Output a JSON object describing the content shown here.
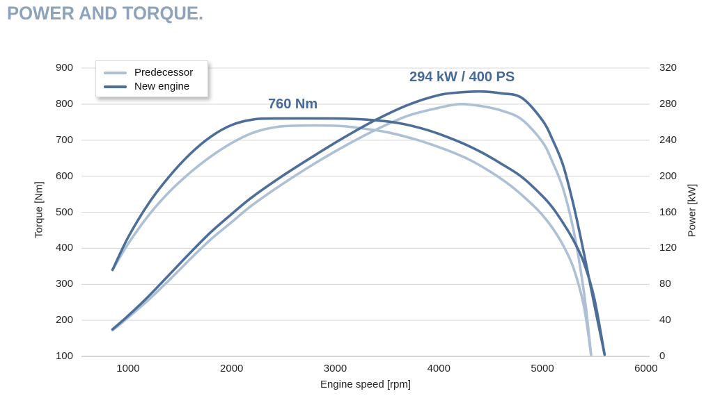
{
  "title": "POWER AND TORQUE.",
  "colors": {
    "predecessor": "#adc0d5",
    "new_engine": "#4d6e98",
    "title": "#8da3bc",
    "annotation": "#46699a",
    "tick_text": "#262626",
    "gridline": "#d6d9dc",
    "baseline": "#c6c8ca",
    "background": "#ffffff"
  },
  "legend": {
    "items": [
      {
        "label": "Predecessor",
        "color_key": "predecessor"
      },
      {
        "label": "New engine",
        "color_key": "new_engine"
      }
    ]
  },
  "annotations": {
    "torque_peak": "760 Nm",
    "power_peak": "294 kW / 400 PS"
  },
  "chart_data": {
    "type": "line",
    "title": "POWER AND TORQUE.",
    "xlabel": "Engine speed [rpm]",
    "ylabel_left": "Torque [Nm]",
    "ylabel_right": "Power [kW]",
    "x_ticks": [
      1000,
      2000,
      3000,
      4000,
      5000,
      6000
    ],
    "x_range": [
      550,
      6035
    ],
    "left_ticks": [
      100,
      200,
      300,
      400,
      500,
      600,
      700,
      800,
      900
    ],
    "left_range": [
      100,
      900
    ],
    "right_ticks": [
      0,
      40,
      80,
      120,
      160,
      200,
      240,
      280,
      320
    ],
    "right_range": [
      0,
      320
    ],
    "grid": "horizontal-only",
    "legend_position": "top-left-inside",
    "series": [
      {
        "key": "predecessor-torque",
        "name": "Predecessor - torque [Nm]",
        "axis": "left",
        "color_key": "predecessor",
        "points": [
          [
            850,
            340
          ],
          [
            1000,
            412
          ],
          [
            1200,
            492
          ],
          [
            1400,
            557
          ],
          [
            1600,
            610
          ],
          [
            1800,
            655
          ],
          [
            2000,
            692
          ],
          [
            2200,
            720
          ],
          [
            2400,
            735
          ],
          [
            2600,
            740
          ],
          [
            3000,
            740
          ],
          [
            3200,
            735
          ],
          [
            3500,
            722
          ],
          [
            3800,
            700
          ],
          [
            4100,
            670
          ],
          [
            4300,
            645
          ],
          [
            4500,
            612
          ],
          [
            4700,
            572
          ],
          [
            4900,
            522
          ],
          [
            5000,
            492
          ],
          [
            5100,
            455
          ],
          [
            5200,
            408
          ],
          [
            5300,
            345
          ],
          [
            5400,
            240
          ],
          [
            5470,
            105
          ]
        ]
      },
      {
        "key": "predecessor-power",
        "name": "Predecessor - power [kW]",
        "axis": "right",
        "color_key": "predecessor",
        "points": [
          [
            850,
            29
          ],
          [
            1000,
            43
          ],
          [
            1200,
            63
          ],
          [
            1400,
            85
          ],
          [
            1600,
            108
          ],
          [
            1800,
            130
          ],
          [
            2000,
            149
          ],
          [
            2200,
            168
          ],
          [
            2500,
            192
          ],
          [
            2800,
            214
          ],
          [
            3100,
            234
          ],
          [
            3400,
            252
          ],
          [
            3700,
            267
          ],
          [
            4000,
            276
          ],
          [
            4200,
            280
          ],
          [
            4400,
            278
          ],
          [
            4600,
            273
          ],
          [
            4800,
            263
          ],
          [
            5000,
            238
          ],
          [
            5100,
            215
          ],
          [
            5200,
            186
          ],
          [
            5300,
            140
          ],
          [
            5400,
            72
          ],
          [
            5470,
            2
          ]
        ]
      },
      {
        "key": "new-engine-torque",
        "name": "New engine - torque [Nm]",
        "axis": "left",
        "color_key": "new_engine",
        "points": [
          [
            850,
            340
          ],
          [
            1000,
            430
          ],
          [
            1200,
            525
          ],
          [
            1400,
            600
          ],
          [
            1600,
            662
          ],
          [
            1800,
            710
          ],
          [
            2000,
            742
          ],
          [
            2200,
            757
          ],
          [
            2400,
            760
          ],
          [
            3000,
            760
          ],
          [
            3300,
            757
          ],
          [
            3600,
            748
          ],
          [
            3900,
            727
          ],
          [
            4200,
            695
          ],
          [
            4400,
            668
          ],
          [
            4600,
            635
          ],
          [
            4800,
            598
          ],
          [
            5000,
            545
          ],
          [
            5100,
            512
          ],
          [
            5200,
            470
          ],
          [
            5300,
            422
          ],
          [
            5400,
            360
          ],
          [
            5500,
            262
          ],
          [
            5600,
            105
          ]
        ]
      },
      {
        "key": "new-engine-power",
        "name": "New engine - power [kW]",
        "axis": "right",
        "color_key": "new_engine",
        "points": [
          [
            850,
            30
          ],
          [
            1000,
            45
          ],
          [
            1200,
            67
          ],
          [
            1400,
            91
          ],
          [
            1600,
            115
          ],
          [
            1800,
            138
          ],
          [
            2000,
            158
          ],
          [
            2200,
            177
          ],
          [
            2500,
            201
          ],
          [
            2800,
            223
          ],
          [
            3100,
            244
          ],
          [
            3400,
            263
          ],
          [
            3700,
            279
          ],
          [
            4000,
            290
          ],
          [
            4200,
            293
          ],
          [
            4400,
            294
          ],
          [
            4600,
            292
          ],
          [
            4800,
            287
          ],
          [
            5000,
            262
          ],
          [
            5100,
            240
          ],
          [
            5200,
            212
          ],
          [
            5300,
            168
          ],
          [
            5400,
            115
          ],
          [
            5500,
            58
          ],
          [
            5600,
            2
          ]
        ]
      }
    ]
  }
}
